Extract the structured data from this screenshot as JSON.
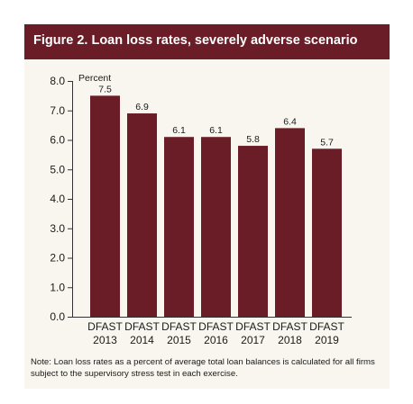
{
  "figure": {
    "title": "Figure 2. Loan loss rates, severely adverse scenario",
    "note": "Note: Loan loss rates as a percent of average total loan balances is calculated for all firms subject to the supervisory stress test in each exercise."
  },
  "colors": {
    "header_bg": "#6b1d27",
    "bar": "#6b1d27",
    "panel_bg": "#f8f6ee"
  },
  "chart_data": {
    "type": "bar",
    "title": "Figure 2. Loan loss rates, severely adverse scenario",
    "ylabel": "Percent",
    "ylim": [
      0,
      8
    ],
    "yticks": [
      "0.0",
      "1.0",
      "2.0",
      "3.0",
      "4.0",
      "5.0",
      "6.0",
      "7.0",
      "8.0"
    ],
    "categories": [
      [
        "DFAST",
        "2013"
      ],
      [
        "DFAST",
        "2014"
      ],
      [
        "DFAST",
        "2015"
      ],
      [
        "DFAST",
        "2016"
      ],
      [
        "DFAST",
        "2017"
      ],
      [
        "DFAST",
        "2018"
      ],
      [
        "DFAST",
        "2019"
      ]
    ],
    "values": [
      7.5,
      6.9,
      6.1,
      6.1,
      5.8,
      6.4,
      5.7
    ],
    "data_labels": [
      "7.5",
      "6.9",
      "6.1",
      "6.1",
      "5.8",
      "6.4",
      "5.7"
    ],
    "grid": false,
    "legend": "none"
  }
}
